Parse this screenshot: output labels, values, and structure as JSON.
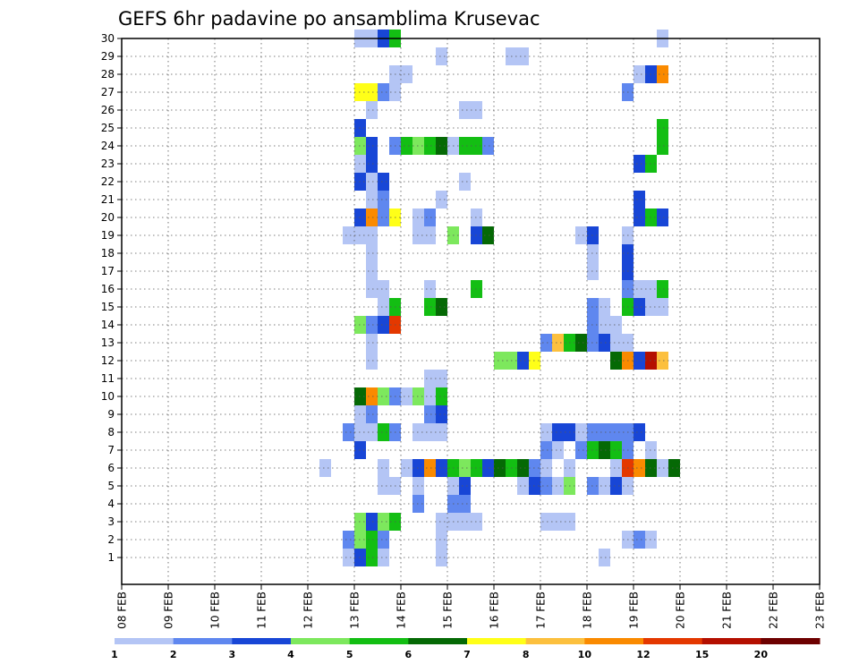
{
  "chart_data": {
    "type": "heatmap",
    "title": "GEFS 6hr padavine po ansamblima Krusevac",
    "xlabel": "",
    "ylabel": "",
    "x_start": "08 FEB 00Z",
    "x_end": "23 FEB 00Z",
    "x_step_hours": 6,
    "x_ticks": [
      "08 FEB",
      "09 FEB",
      "10 FEB",
      "11 FEB",
      "12 FEB",
      "13 FEB",
      "14 FEB",
      "15 FEB",
      "16 FEB",
      "17 FEB",
      "18 FEB",
      "19 FEB",
      "20 FEB",
      "21 FEB",
      "22 FEB",
      "23 FEB"
    ],
    "y_ticks": [
      1,
      2,
      3,
      4,
      5,
      6,
      7,
      8,
      9,
      10,
      11,
      12,
      13,
      14,
      15,
      16,
      17,
      18,
      19,
      20,
      21,
      22,
      23,
      24,
      25,
      26,
      27,
      28,
      29,
      30
    ],
    "ylim": [
      0,
      30
    ],
    "grid": true,
    "legend_placement": "bottom",
    "colorbar": {
      "levels": [
        "1",
        "2",
        "3",
        "4",
        "5",
        "6",
        "7",
        "8",
        "10",
        "12",
        "15",
        "20"
      ],
      "colors": [
        "#b4c5f5",
        "#5f87ef",
        "#1846d6",
        "#7de85d",
        "#13be13",
        "#056905",
        "#ffff18",
        "#fcc03e",
        "#fa8a00",
        "#e43800",
        "#b40f00",
        "#6d0000"
      ]
    },
    "cells_note": "each cell: [day, six-hour-slot, member, level-index]",
    "cells": [
      [
        4,
        3,
        1,
        0
      ],
      [
        4,
        4,
        1,
        2
      ],
      [
        4,
        5,
        1,
        4
      ],
      [
        4,
        6,
        1,
        0
      ],
      [
        4,
        5,
        2,
        4
      ],
      [
        4,
        4,
        2,
        3
      ],
      [
        4,
        6,
        2,
        4
      ],
      [
        5,
        2,
        2,
        1
      ],
      [
        4,
        3,
        2,
        1
      ],
      [
        4,
        4,
        3,
        3
      ],
      [
        4,
        5,
        3,
        2
      ],
      [
        4,
        6,
        3,
        3
      ],
      [
        4,
        7,
        3,
        4
      ],
      [
        4,
        1,
        6,
        0
      ],
      [
        5,
        2,
        5,
        0
      ],
      [
        5,
        3,
        5,
        0
      ],
      [
        5,
        2,
        6,
        0
      ],
      [
        4,
        4,
        7,
        2
      ],
      [
        4,
        3,
        8,
        1
      ],
      [
        4,
        4,
        8,
        3
      ],
      [
        4,
        5,
        8,
        0
      ],
      [
        4,
        6,
        8,
        4
      ],
      [
        4,
        7,
        8,
        1
      ],
      [
        5,
        0,
        8,
        0
      ],
      [
        5,
        1,
        8,
        0
      ],
      [
        4,
        4,
        9,
        0
      ],
      [
        4,
        5,
        9,
        1
      ],
      [
        4,
        4,
        10,
        2
      ],
      [
        4,
        5,
        10,
        5
      ],
      [
        4,
        6,
        10,
        7
      ],
      [
        4,
        7,
        10,
        4
      ],
      [
        5,
        0,
        10,
        5
      ],
      [
        5,
        1,
        10,
        8
      ],
      [
        5,
        2,
        10,
        3
      ],
      [
        5,
        3,
        10,
        1
      ],
      [
        5,
        4,
        10,
        0
      ],
      [
        5,
        5,
        10,
        3
      ],
      [
        4,
        5,
        12,
        0
      ],
      [
        4,
        5,
        13,
        0
      ],
      [
        4,
        4,
        14,
        1
      ],
      [
        4,
        5,
        14,
        1
      ],
      [
        4,
        6,
        14,
        2
      ],
      [
        4,
        7,
        14,
        9
      ],
      [
        5,
        0,
        14,
        3
      ],
      [
        4,
        6,
        15,
        0
      ],
      [
        4,
        7,
        15,
        4
      ],
      [
        5,
        1,
        16,
        0
      ],
      [
        5,
        2,
        16,
        0
      ],
      [
        4,
        5,
        17,
        0
      ],
      [
        4,
        5,
        18,
        0
      ],
      [
        4,
        3,
        19,
        0
      ],
      [
        4,
        4,
        19,
        0
      ],
      [
        4,
        5,
        19,
        0
      ],
      [
        4,
        4,
        20,
        1
      ],
      [
        4,
        5,
        20,
        8
      ],
      [
        4,
        6,
        20,
        1
      ],
      [
        4,
        7,
        20,
        6
      ],
      [
        5,
        0,
        20,
        2
      ],
      [
        4,
        5,
        21,
        0
      ],
      [
        4,
        6,
        21,
        1
      ],
      [
        4,
        4,
        22,
        2
      ],
      [
        4,
        5,
        22,
        0
      ],
      [
        4,
        6,
        22,
        2
      ],
      [
        4,
        4,
        23,
        0
      ],
      [
        4,
        5,
        23,
        2
      ],
      [
        4,
        4,
        24,
        3
      ],
      [
        4,
        5,
        24,
        2
      ],
      [
        4,
        5,
        26,
        0
      ],
      [
        4,
        4,
        27,
        6
      ],
      [
        4,
        5,
        27,
        6
      ],
      [
        4,
        6,
        27,
        1
      ],
      [
        4,
        7,
        27,
        0
      ],
      [
        4,
        5,
        30,
        0
      ],
      [
        4,
        6,
        30,
        2
      ],
      [
        4,
        7,
        30,
        4
      ],
      [
        5,
        0,
        30,
        0
      ],
      [
        5,
        0,
        25,
        2
      ],
      [
        5,
        3,
        24,
        1
      ],
      [
        5,
        4,
        24,
        0
      ],
      [
        5,
        5,
        24,
        3
      ],
      [
        5,
        6,
        24,
        1
      ],
      [
        5,
        7,
        24,
        4
      ],
      [
        5,
        3,
        28,
        0
      ],
      [
        5,
        4,
        28,
        0
      ],
      [
        5,
        5,
        5,
        0
      ],
      [
        5,
        5,
        4,
        1
      ],
      [
        5,
        5,
        6,
        0
      ],
      [
        5,
        5,
        8,
        0
      ],
      [
        5,
        6,
        8,
        0
      ],
      [
        5,
        7,
        8,
        0
      ],
      [
        5,
        5,
        20,
        0
      ],
      [
        5,
        5,
        19,
        0
      ],
      [
        5,
        6,
        19,
        0
      ],
      [
        5,
        6,
        20,
        1
      ],
      [
        5,
        6,
        11,
        0
      ],
      [
        5,
        6,
        10,
        3
      ],
      [
        5,
        7,
        10,
        0
      ],
      [
        5,
        5,
        10,
        3
      ],
      [
        6,
        0,
        24,
        4
      ],
      [
        6,
        1,
        24,
        3
      ],
      [
        6,
        2,
        24,
        4
      ],
      [
        6,
        3,
        24,
        5
      ],
      [
        6,
        4,
        24,
        4
      ],
      [
        6,
        5,
        24,
        4
      ],
      [
        6,
        6,
        24,
        4
      ],
      [
        6,
        7,
        24,
        1
      ],
      [
        7,
        0,
        24,
        0
      ],
      [
        6,
        2,
        9,
        1
      ],
      [
        6,
        3,
        9,
        2
      ],
      [
        6,
        2,
        15,
        4
      ],
      [
        6,
        3,
        15,
        5
      ],
      [
        6,
        0,
        6,
        0
      ],
      [
        6,
        1,
        6,
        2
      ],
      [
        6,
        2,
        6,
        8
      ],
      [
        6,
        3,
        6,
        2
      ],
      [
        6,
        2,
        10,
        0
      ],
      [
        6,
        3,
        10,
        4
      ],
      [
        6,
        2,
        11,
        0
      ],
      [
        6,
        3,
        11,
        0
      ],
      [
        6,
        2,
        16,
        0
      ],
      [
        6,
        3,
        21,
        0
      ],
      [
        6,
        3,
        1,
        0
      ],
      [
        6,
        3,
        2,
        0
      ],
      [
        6,
        3,
        3,
        1
      ],
      [
        6,
        4,
        3,
        1
      ],
      [
        6,
        4,
        4,
        1
      ],
      [
        6,
        5,
        4,
        1
      ],
      [
        6,
        4,
        5,
        0
      ],
      [
        6,
        5,
        5,
        2
      ],
      [
        6,
        3,
        3,
        0
      ],
      [
        6,
        4,
        3,
        0
      ],
      [
        6,
        5,
        3,
        0
      ],
      [
        6,
        6,
        3,
        0
      ],
      [
        6,
        3,
        29,
        0
      ],
      [
        6,
        5,
        22,
        0
      ],
      [
        6,
        6,
        20,
        0
      ],
      [
        6,
        6,
        16,
        4
      ],
      [
        6,
        7,
        6,
        0
      ],
      [
        7,
        0,
        6,
        4
      ],
      [
        7,
        1,
        6,
        3
      ],
      [
        7,
        2,
        6,
        4
      ],
      [
        7,
        3,
        6,
        2
      ],
      [
        6,
        6,
        19,
        2
      ],
      [
        6,
        7,
        19,
        5
      ],
      [
        7,
        0,
        19,
        3
      ],
      [
        7,
        1,
        26,
        0
      ],
      [
        7,
        2,
        26,
        0
      ],
      [
        7,
        5,
        12,
        0
      ],
      [
        7,
        6,
        12,
        2
      ],
      [
        7,
        7,
        12,
        6
      ],
      [
        8,
        0,
        12,
        3
      ],
      [
        8,
        1,
        12,
        3
      ],
      [
        8,
        2,
        12,
        2
      ],
      [
        7,
        6,
        5,
        0
      ],
      [
        7,
        7,
        5,
        7
      ],
      [
        7,
        7,
        6,
        5
      ],
      [
        8,
        0,
        6,
        5
      ],
      [
        8,
        1,
        6,
        4
      ],
      [
        8,
        2,
        6,
        5
      ],
      [
        8,
        3,
        6,
        1
      ],
      [
        8,
        4,
        6,
        0
      ],
      [
        7,
        5,
        29,
        0
      ],
      [
        7,
        6,
        29,
        0
      ],
      [
        8,
        3,
        5,
        2
      ],
      [
        8,
        4,
        5,
        1
      ],
      [
        8,
        5,
        5,
        5
      ],
      [
        8,
        6,
        5,
        3
      ],
      [
        8,
        4,
        8,
        0
      ],
      [
        8,
        4,
        3,
        0
      ],
      [
        8,
        5,
        3,
        0
      ],
      [
        8,
        6,
        8,
        0
      ],
      [
        8,
        6,
        6,
        0
      ],
      [
        8,
        6,
        3,
        0
      ],
      [
        8,
        7,
        8,
        0
      ],
      [
        8,
        7,
        13,
        1
      ],
      [
        9,
        0,
        13,
        1
      ],
      [
        9,
        1,
        13,
        7
      ],
      [
        9,
        2,
        13,
        4
      ],
      [
        9,
        3,
        13,
        5
      ],
      [
        9,
        4,
        13,
        1
      ],
      [
        9,
        5,
        13,
        2
      ],
      [
        9,
        6,
        13,
        0
      ],
      [
        9,
        7,
        13,
        0
      ],
      [
        8,
        7,
        7,
        1
      ],
      [
        9,
        0,
        7,
        1
      ],
      [
        9,
        1,
        7,
        0
      ],
      [
        9,
        1,
        8,
        2
      ],
      [
        9,
        0,
        8,
        0
      ],
      [
        9,
        2,
        8,
        2
      ],
      [
        9,
        3,
        8,
        0
      ],
      [
        9,
        2,
        3,
        0
      ],
      [
        9,
        1,
        5,
        0
      ],
      [
        9,
        3,
        19,
        0
      ],
      [
        9,
        4,
        5,
        0
      ],
      [
        9,
        5,
        5,
        4
      ],
      [
        9,
        6,
        5,
        2
      ],
      [
        9,
        7,
        5,
        0
      ],
      [
        10,
        0,
        5,
        1
      ],
      [
        10,
        1,
        5,
        0
      ],
      [
        9,
        3,
        8,
        0
      ],
      [
        10,
        0,
        8,
        0
      ],
      [
        9,
        5,
        7,
        0
      ],
      [
        9,
        6,
        7,
        4
      ],
      [
        9,
        7,
        7,
        1
      ],
      [
        10,
        0,
        7,
        4
      ],
      [
        10,
        1,
        7,
        5
      ],
      [
        10,
        2,
        7,
        4
      ],
      [
        10,
        3,
        7,
        1
      ],
      [
        10,
        0,
        14,
        1
      ],
      [
        10,
        1,
        14,
        0
      ],
      [
        10,
        2,
        14,
        0
      ],
      [
        9,
        7,
        15,
        0
      ],
      [
        10,
        0,
        15,
        1
      ],
      [
        10,
        1,
        15,
        0
      ],
      [
        9,
        7,
        16,
        1
      ],
      [
        9,
        7,
        17,
        2
      ],
      [
        10,
        0,
        17,
        0
      ],
      [
        9,
        7,
        18,
        2
      ],
      [
        10,
        0,
        18,
        0
      ],
      [
        9,
        7,
        19,
        0
      ],
      [
        10,
        0,
        19,
        2
      ],
      [
        9,
        7,
        27,
        1
      ],
      [
        9,
        7,
        8,
        0
      ],
      [
        10,
        0,
        8,
        1
      ],
      [
        10,
        1,
        8,
        1
      ],
      [
        10,
        2,
        8,
        1
      ],
      [
        10,
        3,
        8,
        1
      ],
      [
        10,
        4,
        8,
        2
      ],
      [
        10,
        1,
        1,
        0
      ],
      [
        10,
        2,
        6,
        0
      ],
      [
        10,
        3,
        6,
        9
      ],
      [
        10,
        4,
        6,
        8
      ],
      [
        10,
        5,
        6,
        5
      ],
      [
        10,
        6,
        6,
        1
      ],
      [
        10,
        7,
        6,
        4
      ],
      [
        10,
        2,
        12,
        5
      ],
      [
        10,
        3,
        12,
        8
      ],
      [
        10,
        4,
        12,
        2
      ],
      [
        10,
        5,
        12,
        10
      ],
      [
        10,
        6,
        12,
        7
      ],
      [
        10,
        3,
        2,
        0
      ],
      [
        10,
        4,
        2,
        1
      ],
      [
        10,
        5,
        2,
        0
      ],
      [
        10,
        3,
        15,
        4
      ],
      [
        10,
        4,
        15,
        2
      ],
      [
        10,
        5,
        15,
        0
      ],
      [
        10,
        6,
        15,
        0
      ],
      [
        10,
        4,
        16,
        0
      ],
      [
        10,
        5,
        16,
        0
      ],
      [
        10,
        6,
        16,
        4
      ],
      [
        10,
        4,
        20,
        2
      ],
      [
        10,
        5,
        20,
        4
      ],
      [
        10,
        6,
        20,
        2
      ],
      [
        10,
        4,
        21,
        2
      ],
      [
        10,
        5,
        23,
        4
      ],
      [
        10,
        4,
        23,
        2
      ],
      [
        10,
        5,
        28,
        2
      ],
      [
        10,
        6,
        28,
        8
      ],
      [
        10,
        4,
        28,
        0
      ],
      [
        10,
        6,
        30,
        0
      ],
      [
        10,
        6,
        25,
        4
      ],
      [
        10,
        6,
        24,
        4
      ],
      [
        10,
        5,
        7,
        0
      ],
      [
        10,
        6,
        6,
        0
      ],
      [
        10,
        7,
        6,
        5
      ]
    ]
  }
}
